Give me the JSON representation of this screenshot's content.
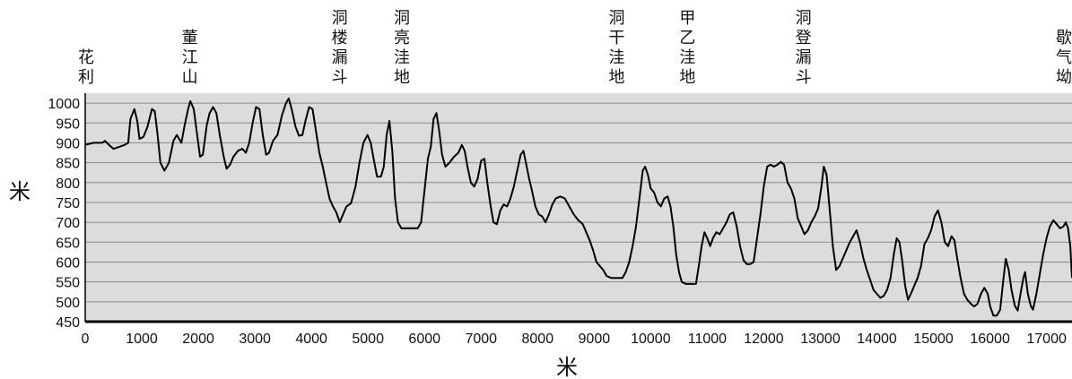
{
  "chart_data": {
    "type": "line",
    "xlabel": "米",
    "ylabel": "米",
    "xlim": [
      0,
      17450
    ],
    "ylim": [
      450,
      1025
    ],
    "x_ticks": [
      0,
      1000,
      2000,
      3000,
      4000,
      5000,
      6000,
      7000,
      8000,
      9000,
      10000,
      11000,
      12000,
      13000,
      14000,
      15000,
      16000,
      17000
    ],
    "y_ticks": [
      450,
      500,
      550,
      600,
      650,
      700,
      750,
      800,
      850,
      900,
      950,
      1000
    ],
    "grid": true,
    "annotations": [
      {
        "text": "花利",
        "x": 0
      },
      {
        "text": "董江山",
        "x": 1850
      },
      {
        "text": "洞楼漏斗",
        "x": 4500
      },
      {
        "text": "洞亮洼地",
        "x": 5600
      },
      {
        "text": "洞干洼地",
        "x": 9400
      },
      {
        "text": "甲乙洼地",
        "x": 10650
      },
      {
        "text": "洞登漏斗",
        "x": 12700
      },
      {
        "text": "歇气坳",
        "x": 17450
      }
    ],
    "series": [
      {
        "points": [
          [
            0,
            895
          ],
          [
            150,
            900
          ],
          [
            300,
            900
          ],
          [
            350,
            905
          ],
          [
            420,
            895
          ],
          [
            500,
            885
          ],
          [
            600,
            890
          ],
          [
            700,
            895
          ],
          [
            760,
            900
          ],
          [
            800,
            960
          ],
          [
            870,
            985
          ],
          [
            920,
            955
          ],
          [
            960,
            910
          ],
          [
            1030,
            915
          ],
          [
            1100,
            940
          ],
          [
            1180,
            985
          ],
          [
            1230,
            980
          ],
          [
            1280,
            920
          ],
          [
            1330,
            850
          ],
          [
            1400,
            830
          ],
          [
            1480,
            850
          ],
          [
            1560,
            905
          ],
          [
            1620,
            920
          ],
          [
            1700,
            900
          ],
          [
            1760,
            945
          ],
          [
            1820,
            985
          ],
          [
            1860,
            1005
          ],
          [
            1920,
            985
          ],
          [
            1970,
            930
          ],
          [
            2030,
            865
          ],
          [
            2080,
            870
          ],
          [
            2150,
            945
          ],
          [
            2200,
            975
          ],
          [
            2260,
            990
          ],
          [
            2320,
            975
          ],
          [
            2380,
            920
          ],
          [
            2450,
            865
          ],
          [
            2500,
            835
          ],
          [
            2560,
            845
          ],
          [
            2620,
            865
          ],
          [
            2700,
            880
          ],
          [
            2780,
            885
          ],
          [
            2840,
            875
          ],
          [
            2900,
            900
          ],
          [
            2960,
            950
          ],
          [
            3020,
            990
          ],
          [
            3080,
            985
          ],
          [
            3140,
            920
          ],
          [
            3200,
            870
          ],
          [
            3250,
            875
          ],
          [
            3320,
            905
          ],
          [
            3400,
            920
          ],
          [
            3480,
            970
          ],
          [
            3550,
            1000
          ],
          [
            3600,
            1012
          ],
          [
            3650,
            985
          ],
          [
            3720,
            940
          ],
          [
            3780,
            918
          ],
          [
            3840,
            920
          ],
          [
            3900,
            958
          ],
          [
            3960,
            990
          ],
          [
            4020,
            985
          ],
          [
            4080,
            930
          ],
          [
            4140,
            875
          ],
          [
            4200,
            840
          ],
          [
            4260,
            800
          ],
          [
            4320,
            760
          ],
          [
            4380,
            740
          ],
          [
            4440,
            725
          ],
          [
            4500,
            700
          ],
          [
            4560,
            720
          ],
          [
            4620,
            740
          ],
          [
            4700,
            748
          ],
          [
            4780,
            790
          ],
          [
            4850,
            850
          ],
          [
            4920,
            900
          ],
          [
            4990,
            920
          ],
          [
            5050,
            900
          ],
          [
            5100,
            860
          ],
          [
            5160,
            815
          ],
          [
            5230,
            815
          ],
          [
            5280,
            840
          ],
          [
            5330,
            920
          ],
          [
            5380,
            955
          ],
          [
            5430,
            880
          ],
          [
            5480,
            760
          ],
          [
            5530,
            700
          ],
          [
            5590,
            685
          ],
          [
            5650,
            685
          ],
          [
            5750,
            685
          ],
          [
            5880,
            685
          ],
          [
            5940,
            700
          ],
          [
            6000,
            780
          ],
          [
            6060,
            860
          ],
          [
            6110,
            890
          ],
          [
            6160,
            960
          ],
          [
            6210,
            975
          ],
          [
            6260,
            930
          ],
          [
            6310,
            870
          ],
          [
            6370,
            840
          ],
          [
            6440,
            850
          ],
          [
            6520,
            865
          ],
          [
            6600,
            875
          ],
          [
            6660,
            895
          ],
          [
            6710,
            880
          ],
          [
            6760,
            840
          ],
          [
            6820,
            800
          ],
          [
            6880,
            790
          ],
          [
            6940,
            810
          ],
          [
            7000,
            855
          ],
          [
            7060,
            860
          ],
          [
            7110,
            800
          ],
          [
            7170,
            740
          ],
          [
            7220,
            700
          ],
          [
            7280,
            695
          ],
          [
            7340,
            730
          ],
          [
            7400,
            745
          ],
          [
            7460,
            740
          ],
          [
            7520,
            760
          ],
          [
            7580,
            790
          ],
          [
            7640,
            830
          ],
          [
            7700,
            870
          ],
          [
            7750,
            880
          ],
          [
            7800,
            845
          ],
          [
            7850,
            810
          ],
          [
            7900,
            780
          ],
          [
            7960,
            740
          ],
          [
            8020,
            720
          ],
          [
            8080,
            715
          ],
          [
            8140,
            700
          ],
          [
            8200,
            720
          ],
          [
            8260,
            745
          ],
          [
            8320,
            760
          ],
          [
            8400,
            765
          ],
          [
            8480,
            760
          ],
          [
            8560,
            740
          ],
          [
            8640,
            720
          ],
          [
            8720,
            705
          ],
          [
            8800,
            695
          ],
          [
            8860,
            675
          ],
          [
            8920,
            655
          ],
          [
            8980,
            630
          ],
          [
            9040,
            600
          ],
          [
            9100,
            590
          ],
          [
            9160,
            580
          ],
          [
            9220,
            565
          ],
          [
            9300,
            560
          ],
          [
            9400,
            560
          ],
          [
            9500,
            560
          ],
          [
            9560,
            575
          ],
          [
            9620,
            600
          ],
          [
            9680,
            640
          ],
          [
            9740,
            690
          ],
          [
            9800,
            760
          ],
          [
            9860,
            830
          ],
          [
            9900,
            840
          ],
          [
            9950,
            820
          ],
          [
            10000,
            785
          ],
          [
            10060,
            775
          ],
          [
            10120,
            750
          ],
          [
            10180,
            740
          ],
          [
            10240,
            760
          ],
          [
            10300,
            765
          ],
          [
            10350,
            740
          ],
          [
            10400,
            690
          ],
          [
            10450,
            620
          ],
          [
            10500,
            575
          ],
          [
            10550,
            550
          ],
          [
            10620,
            545
          ],
          [
            10700,
            545
          ],
          [
            10800,
            545
          ],
          [
            10850,
            590
          ],
          [
            10900,
            640
          ],
          [
            10950,
            675
          ],
          [
            11000,
            660
          ],
          [
            11050,
            640
          ],
          [
            11100,
            660
          ],
          [
            11160,
            675
          ],
          [
            11220,
            670
          ],
          [
            11280,
            685
          ],
          [
            11340,
            700
          ],
          [
            11400,
            720
          ],
          [
            11460,
            725
          ],
          [
            11520,
            690
          ],
          [
            11580,
            640
          ],
          [
            11640,
            605
          ],
          [
            11700,
            595
          ],
          [
            11760,
            595
          ],
          [
            11820,
            600
          ],
          [
            11880,
            660
          ],
          [
            11940,
            720
          ],
          [
            12000,
            790
          ],
          [
            12060,
            840
          ],
          [
            12120,
            845
          ],
          [
            12180,
            840
          ],
          [
            12240,
            845
          ],
          [
            12300,
            852
          ],
          [
            12360,
            845
          ],
          [
            12420,
            800
          ],
          [
            12480,
            785
          ],
          [
            12540,
            760
          ],
          [
            12600,
            710
          ],
          [
            12660,
            690
          ],
          [
            12720,
            670
          ],
          [
            12780,
            680
          ],
          [
            12840,
            700
          ],
          [
            12900,
            715
          ],
          [
            12960,
            735
          ],
          [
            13020,
            790
          ],
          [
            13060,
            840
          ],
          [
            13110,
            820
          ],
          [
            13160,
            740
          ],
          [
            13220,
            640
          ],
          [
            13280,
            580
          ],
          [
            13340,
            590
          ],
          [
            13400,
            610
          ],
          [
            13460,
            630
          ],
          [
            13520,
            650
          ],
          [
            13580,
            665
          ],
          [
            13640,
            680
          ],
          [
            13700,
            650
          ],
          [
            13760,
            610
          ],
          [
            13820,
            580
          ],
          [
            13880,
            555
          ],
          [
            13940,
            530
          ],
          [
            14000,
            520
          ],
          [
            14060,
            510
          ],
          [
            14120,
            515
          ],
          [
            14180,
            530
          ],
          [
            14240,
            560
          ],
          [
            14300,
            620
          ],
          [
            14350,
            660
          ],
          [
            14400,
            650
          ],
          [
            14450,
            600
          ],
          [
            14500,
            540
          ],
          [
            14550,
            505
          ],
          [
            14600,
            520
          ],
          [
            14660,
            540
          ],
          [
            14720,
            560
          ],
          [
            14780,
            590
          ],
          [
            14840,
            645
          ],
          [
            14900,
            660
          ],
          [
            14960,
            680
          ],
          [
            15020,
            715
          ],
          [
            15080,
            730
          ],
          [
            15140,
            700
          ],
          [
            15200,
            650
          ],
          [
            15260,
            640
          ],
          [
            15320,
            665
          ],
          [
            15370,
            655
          ],
          [
            15420,
            610
          ],
          [
            15480,
            560
          ],
          [
            15540,
            520
          ],
          [
            15600,
            505
          ],
          [
            15660,
            495
          ],
          [
            15720,
            488
          ],
          [
            15780,
            495
          ],
          [
            15840,
            520
          ],
          [
            15900,
            535
          ],
          [
            15960,
            520
          ],
          [
            16000,
            490
          ],
          [
            16060,
            465
          ],
          [
            16120,
            465
          ],
          [
            16180,
            480
          ],
          [
            16240,
            560
          ],
          [
            16280,
            608
          ],
          [
            16330,
            580
          ],
          [
            16380,
            530
          ],
          [
            16440,
            490
          ],
          [
            16490,
            478
          ],
          [
            16540,
            520
          ],
          [
            16590,
            560
          ],
          [
            16620,
            575
          ],
          [
            16670,
            520
          ],
          [
            16720,
            490
          ],
          [
            16760,
            480
          ],
          [
            16820,
            520
          ],
          [
            16880,
            570
          ],
          [
            16940,
            620
          ],
          [
            17000,
            660
          ],
          [
            17060,
            690
          ],
          [
            17120,
            705
          ],
          [
            17180,
            695
          ],
          [
            17240,
            685
          ],
          [
            17300,
            690
          ],
          [
            17340,
            700
          ],
          [
            17380,
            685
          ],
          [
            17420,
            640
          ],
          [
            17450,
            560
          ]
        ]
      }
    ]
  }
}
